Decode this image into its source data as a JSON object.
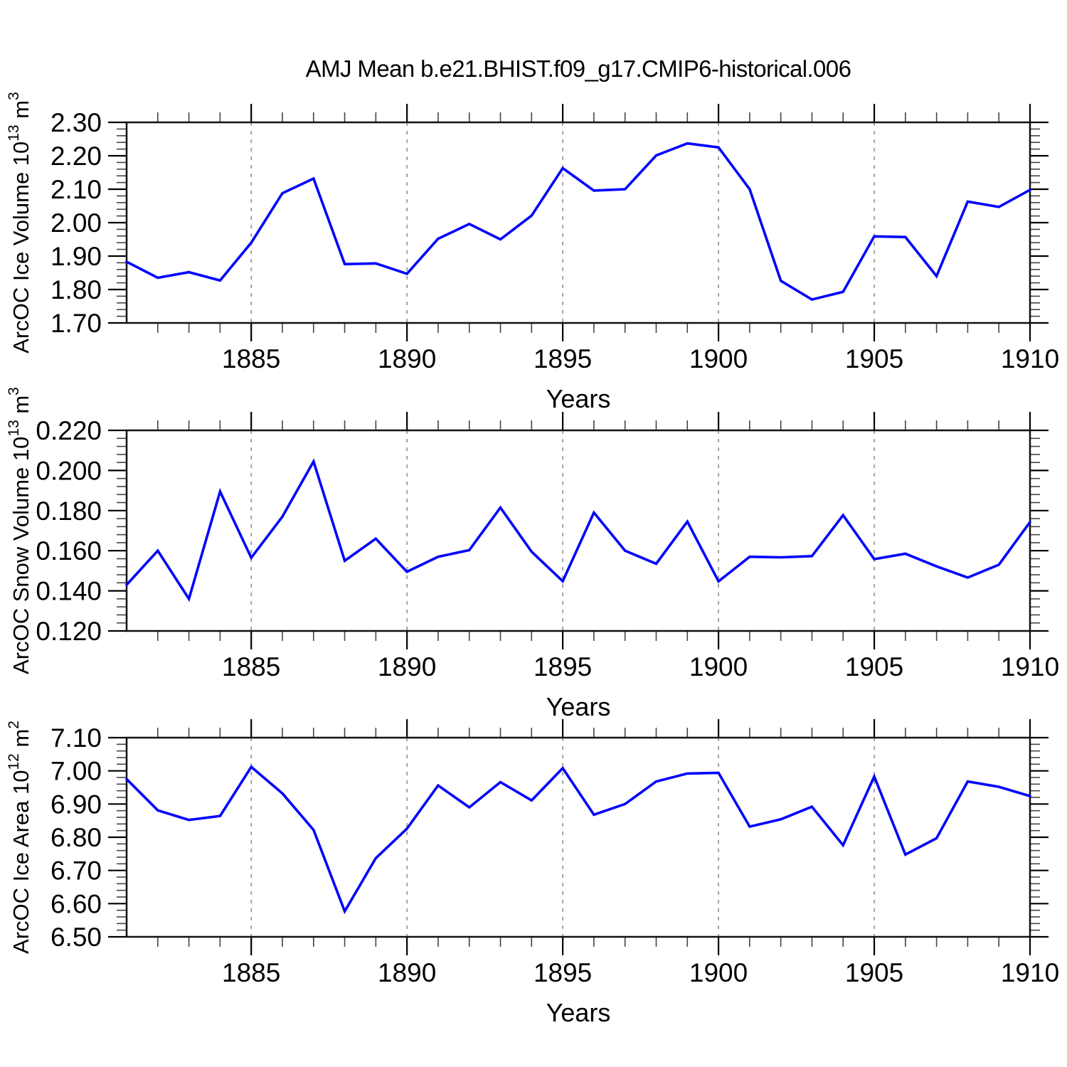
{
  "title": "AMJ Mean b.e21.BHIST.f09_g17.CMIP6-historical.006",
  "line_color": "#0000ff",
  "grid_color": "#808080",
  "axis_color": "#111111",
  "x": {
    "label": "Years",
    "range": [
      1881,
      1910
    ],
    "tick_years": [
      1885,
      1890,
      1895,
      1900,
      1905,
      1910
    ],
    "tick_labels": [
      "1885",
      "1890",
      "1895",
      "1900",
      "1905",
      "1910"
    ],
    "grid_years": [
      1885,
      1890,
      1895,
      1900,
      1905
    ],
    "minor_step": 1
  },
  "years": [
    1881,
    1882,
    1883,
    1884,
    1885,
    1886,
    1887,
    1888,
    1889,
    1890,
    1891,
    1892,
    1893,
    1894,
    1895,
    1896,
    1897,
    1898,
    1899,
    1900,
    1901,
    1902,
    1903,
    1904,
    1905,
    1906,
    1907,
    1908,
    1909,
    1910
  ],
  "chart_data": [
    {
      "type": "line",
      "name": "arcoc-ice-volume",
      "ylabel": "ArcOC Ice Volume 10^13 m^3",
      "ylabel_parts": [
        [
          "ArcOC Ice Volume 10",
          0
        ],
        [
          "13",
          1
        ],
        [
          " m",
          0
        ],
        [
          "3",
          1
        ]
      ],
      "ylim": [
        1.7,
        2.3
      ],
      "yticks": [
        1.7,
        1.8,
        1.9,
        2.0,
        2.1,
        2.2,
        2.3
      ],
      "ytick_labels": [
        "1.70",
        "1.80",
        "1.90",
        "2.00",
        "2.10",
        "2.20",
        "2.30"
      ],
      "yminor_step": 0.02,
      "values": [
        1.883,
        1.835,
        1.852,
        1.827,
        1.94,
        2.088,
        2.132,
        1.876,
        1.878,
        1.847,
        1.952,
        1.996,
        1.95,
        2.021,
        2.163,
        2.096,
        2.1,
        2.201,
        2.237,
        2.225,
        2.1,
        1.826,
        1.77,
        1.793,
        1.959,
        1.957,
        1.84,
        2.063,
        2.047,
        2.098
      ]
    },
    {
      "type": "line",
      "name": "arcoc-snow-volume",
      "ylabel": "ArcOC Snow Volume 10^13 m^3",
      "ylabel_parts": [
        [
          "ArcOC Snow Volume 10",
          0
        ],
        [
          "13",
          1
        ],
        [
          " m",
          0
        ],
        [
          "3",
          1
        ]
      ],
      "ylim": [
        0.12,
        0.22
      ],
      "yticks": [
        0.12,
        0.14,
        0.16,
        0.18,
        0.2,
        0.22
      ],
      "ytick_labels": [
        "0.120",
        "0.140",
        "0.160",
        "0.180",
        "0.200",
        "0.220"
      ],
      "yminor_step": 0.004,
      "values": [
        0.143,
        0.16,
        0.136,
        0.1895,
        0.1565,
        0.177,
        0.2045,
        0.155,
        0.166,
        0.1495,
        0.157,
        0.1603,
        0.1815,
        0.1595,
        0.1448,
        0.179,
        0.16,
        0.1535,
        0.1745,
        0.1447,
        0.157,
        0.1567,
        0.1573,
        0.1777,
        0.1558,
        0.1585,
        0.1522,
        0.1466,
        0.153,
        0.1743
      ]
    },
    {
      "type": "line",
      "name": "arcoc-ice-area",
      "ylabel": "ArcOC Ice Area 10^12 m^2",
      "ylabel_parts": [
        [
          "ArcOC Ice Area 10",
          0
        ],
        [
          "12",
          1
        ],
        [
          " m",
          0
        ],
        [
          "2",
          1
        ]
      ],
      "ylim": [
        6.5,
        7.1
      ],
      "yticks": [
        6.5,
        6.6,
        6.7,
        6.8,
        6.9,
        7.0,
        7.1
      ],
      "ytick_labels": [
        "6.50",
        "6.60",
        "6.70",
        "6.80",
        "6.90",
        "7.00",
        "7.10"
      ],
      "yminor_step": 0.02,
      "values": [
        6.975,
        6.881,
        6.852,
        6.864,
        7.012,
        6.932,
        6.822,
        6.577,
        6.737,
        6.826,
        6.956,
        6.89,
        6.966,
        6.911,
        7.008,
        6.868,
        6.9,
        6.968,
        6.992,
        6.994,
        6.832,
        6.854,
        6.892,
        6.776,
        6.983,
        6.748,
        6.797,
        6.968,
        6.952,
        6.924
      ]
    }
  ]
}
